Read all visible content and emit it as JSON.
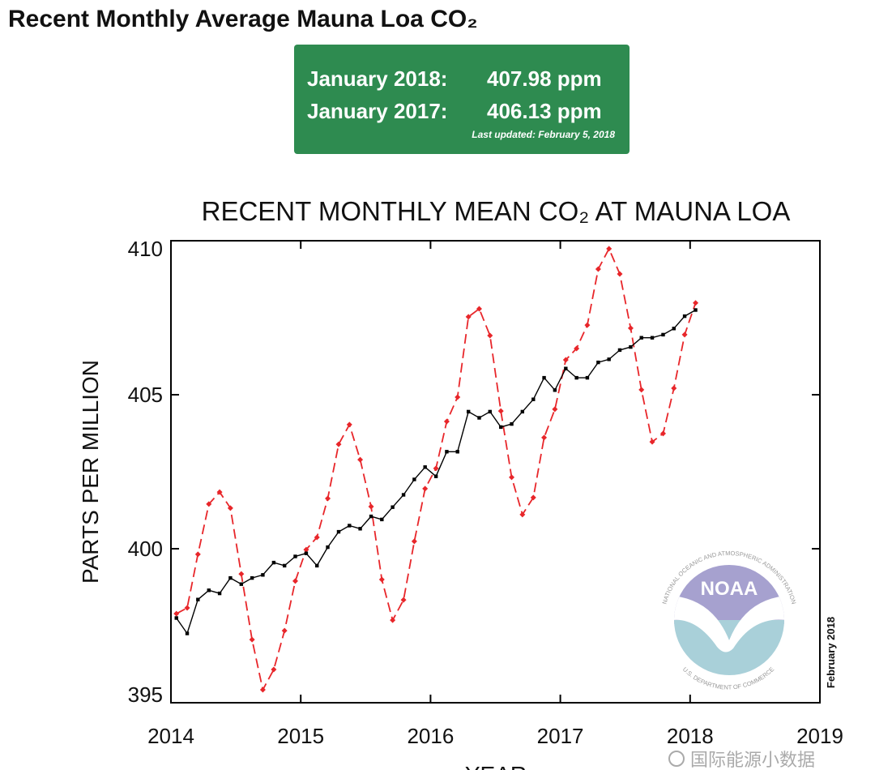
{
  "header": {
    "title": "Recent Monthly Average Mauna Loa CO₂"
  },
  "info_box": {
    "rows": [
      {
        "label": "January 2018:",
        "value": "407.98 ppm"
      },
      {
        "label": "January 2017:",
        "value": "406.13 ppm"
      }
    ],
    "note": "Last updated: February 5, 2018"
  },
  "chart_data": {
    "type": "line",
    "title": "RECENT MONTHLY MEAN CO₂ AT MAUNA LOA",
    "xlabel": "YEAR",
    "ylabel": "PARTS PER MILLION",
    "side_note": "February 2018",
    "logo_text": "NOAA",
    "logo_ring_top": "NATIONAL OCEANIC AND ATMOSPHERIC ADMINISTRATION",
    "logo_ring_bottom": "U.S. DEPARTMENT OF COMMERCE",
    "x": [
      2014.042,
      2014.125,
      2014.208,
      2014.292,
      2014.375,
      2014.458,
      2014.542,
      2014.625,
      2014.708,
      2014.792,
      2014.875,
      2014.958,
      2015.042,
      2015.125,
      2015.208,
      2015.292,
      2015.375,
      2015.458,
      2015.542,
      2015.625,
      2015.708,
      2015.792,
      2015.875,
      2015.958,
      2016.042,
      2016.125,
      2016.208,
      2016.292,
      2016.375,
      2016.458,
      2016.542,
      2016.625,
      2016.708,
      2016.792,
      2016.875,
      2016.958,
      2017.042,
      2017.125,
      2017.208,
      2017.292,
      2017.375,
      2017.458,
      2017.542,
      2017.625,
      2017.708,
      2017.792,
      2017.875,
      2017.958,
      2018.042
    ],
    "series": [
      {
        "color": "#e8262a",
        "line_style": "dashed",
        "marker": "diamond",
        "values": [
          397.89,
          398.08,
          399.82,
          401.45,
          401.84,
          401.32,
          399.18,
          397.05,
          395.42,
          396.08,
          397.34,
          398.95,
          399.97,
          400.37,
          401.63,
          403.39,
          404.03,
          402.89,
          401.37,
          399.0,
          397.68,
          398.34,
          400.24,
          401.95,
          402.61,
          404.13,
          404.92,
          407.53,
          407.79,
          406.92,
          404.47,
          402.32,
          401.11,
          401.66,
          403.61,
          404.53,
          406.13,
          406.5,
          407.26,
          409.08,
          409.74,
          408.92,
          407.16,
          405.16,
          403.47,
          403.74,
          405.21,
          406.95,
          407.98
        ]
      },
      {
        "color": "#000000",
        "line_style": "solid",
        "marker": "square",
        "values": [
          397.75,
          397.25,
          398.35,
          398.65,
          398.55,
          399.05,
          398.85,
          399.05,
          399.15,
          399.55,
          399.45,
          399.75,
          399.85,
          399.45,
          400.05,
          400.55,
          400.75,
          400.65,
          401.05,
          400.95,
          401.35,
          401.75,
          402.25,
          402.65,
          402.35,
          403.15,
          403.15,
          404.45,
          404.25,
          404.45,
          403.95,
          404.05,
          404.45,
          404.85,
          405.55,
          405.15,
          405.85,
          405.55,
          405.55,
          406.05,
          406.15,
          406.45,
          406.55,
          406.85,
          406.85,
          406.95,
          407.15,
          407.55,
          407.75
        ]
      }
    ],
    "xlim": [
      2014,
      2019
    ],
    "xticks": [
      2014,
      2015,
      2016,
      2017,
      2018,
      2019
    ],
    "ylim": [
      395,
      410
    ],
    "yticks": [
      395,
      400,
      405,
      410
    ],
    "watermark": "国际能源小数据"
  }
}
